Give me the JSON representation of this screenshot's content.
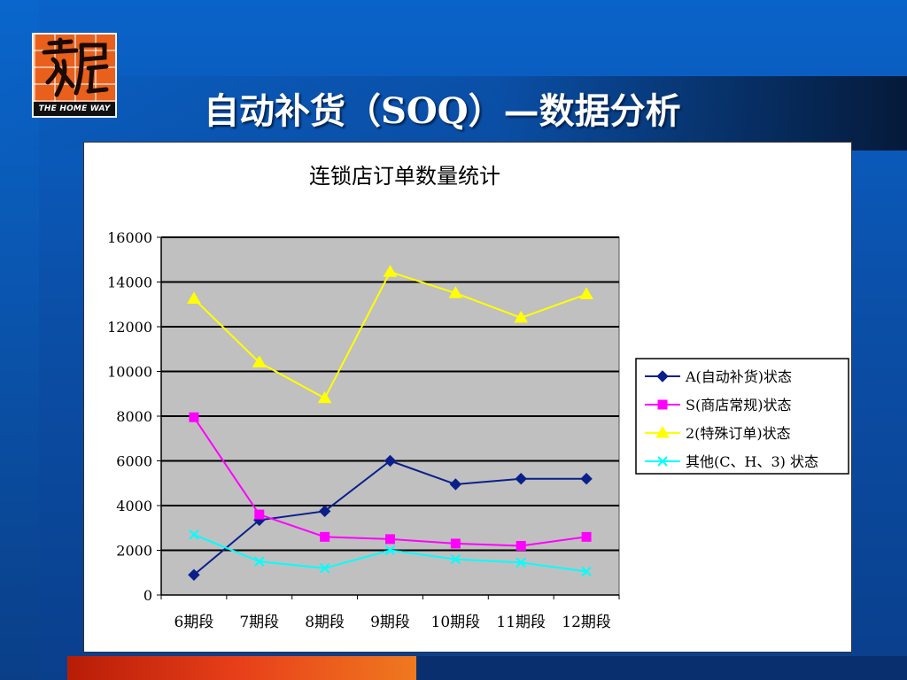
{
  "slide": {
    "title": "自动补货（SOQ）—数据分析"
  },
  "logo": {
    "text": "THE HOME WAY",
    "mark": "家居",
    "color": "#e8601c"
  },
  "chart_data": {
    "type": "line",
    "title": "连锁店订单数量统计",
    "categories": [
      "6期段",
      "7期段",
      "8期段",
      "9期段",
      "10期段",
      "11期段",
      "12期段"
    ],
    "ylim": [
      0,
      16000
    ],
    "yticks": [
      0,
      2000,
      4000,
      6000,
      8000,
      10000,
      12000,
      14000,
      16000
    ],
    "grid": true,
    "legend_position": "right",
    "plot_background": "#c0c0c0",
    "series": [
      {
        "name": "A(自动补货)状态",
        "color": "#0a1f8a",
        "marker": "diamond",
        "values": [
          900,
          3350,
          3750,
          6000,
          4950,
          5200,
          5200
        ]
      },
      {
        "name": "S(商店常规)状态",
        "color": "#ff00ff",
        "marker": "square",
        "values": [
          7950,
          3600,
          2600,
          2500,
          2300,
          2200,
          2600
        ]
      },
      {
        "name": "2(特殊订单)状态",
        "color": "#ffff00",
        "marker": "triangle",
        "values": [
          13250,
          10400,
          8800,
          14450,
          13500,
          12400,
          13450
        ]
      },
      {
        "name": "其他(C、H、3) 状态",
        "color": "#00ffff",
        "marker": "x",
        "values": [
          2700,
          1500,
          1200,
          2000,
          1600,
          1450,
          1050
        ]
      }
    ]
  }
}
